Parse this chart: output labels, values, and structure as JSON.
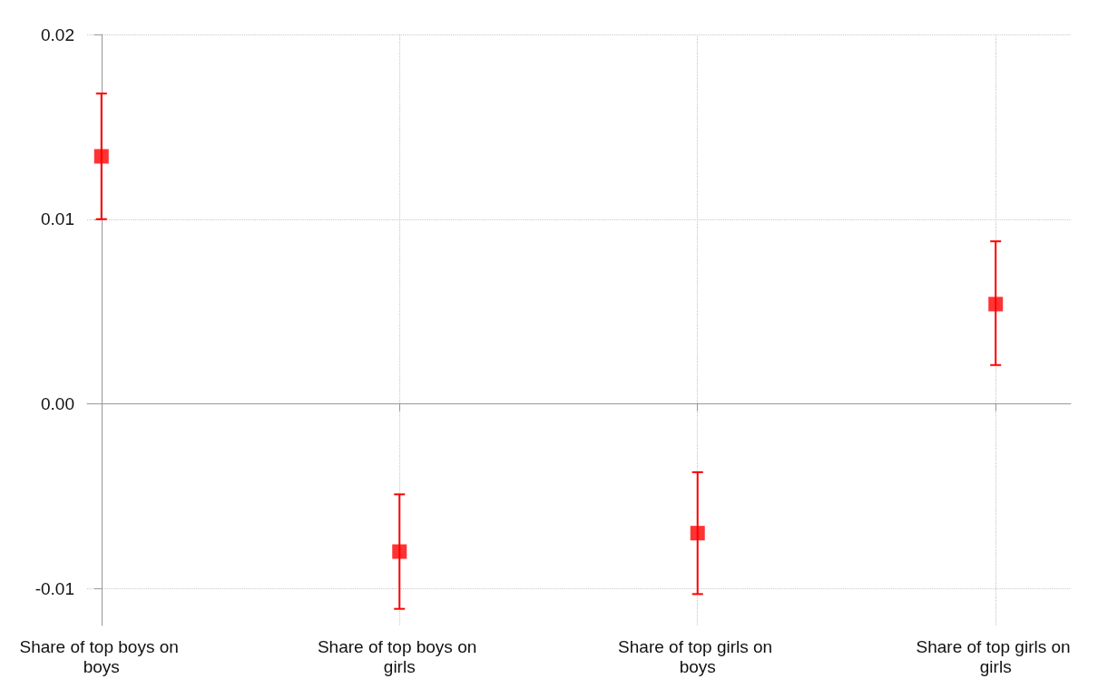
{
  "chart_data": {
    "type": "scatter",
    "categories": [
      "Share of top boys on boys",
      "Share of top boys on girls",
      "Share of top girls on boys",
      "Share of top girls on girls"
    ],
    "series": [
      {
        "color": "#ff0000",
        "values": [
          0.0134,
          -0.008,
          -0.007,
          0.0054
        ],
        "errors": [
          [
            0.01,
            0.0168
          ],
          [
            -0.0111,
            -0.0049
          ],
          [
            -0.0103,
            -0.0037
          ],
          [
            0.0021,
            0.0088
          ]
        ]
      }
    ],
    "marker": "square",
    "ylim": [
      -0.012,
      0.02
    ],
    "yticks": [
      -0.01,
      {
        "value": 0,
        "label": "0.00"
      },
      0.01,
      0.02
    ],
    "grid": true
  }
}
